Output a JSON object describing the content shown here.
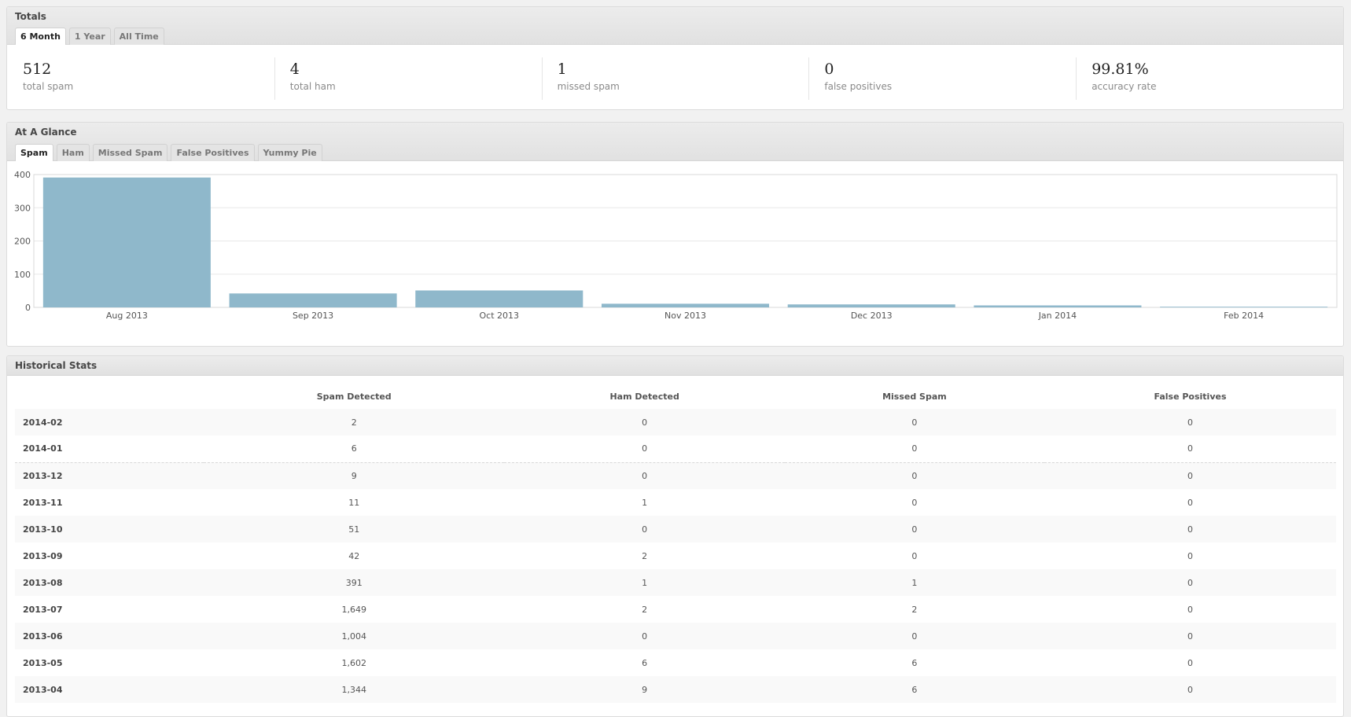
{
  "totals": {
    "title": "Totals",
    "tabs": [
      "6 Month",
      "1 Year",
      "All Time"
    ],
    "active_tab": 0,
    "stats": [
      {
        "value": "512",
        "label": "total spam"
      },
      {
        "value": "4",
        "label": "total ham"
      },
      {
        "value": "1",
        "label": "missed spam"
      },
      {
        "value": "0",
        "label": "false positives"
      },
      {
        "value": "99.81%",
        "label": "accuracy rate"
      }
    ]
  },
  "glance": {
    "title": "At A Glance",
    "tabs": [
      "Spam",
      "Ham",
      "Missed Spam",
      "False Positives",
      "Yummy Pie"
    ],
    "active_tab": 0
  },
  "chart_data": {
    "type": "bar",
    "categories": [
      "Aug 2013",
      "Sep 2013",
      "Oct 2013",
      "Nov 2013",
      "Dec 2013",
      "Jan 2014",
      "Feb 2014"
    ],
    "values": [
      391,
      42,
      51,
      11,
      9,
      6,
      2
    ],
    "ylim": [
      0,
      400
    ],
    "yticks": [
      0,
      100,
      200,
      300,
      400
    ],
    "grid": true,
    "bar_color": "#8fb8cb"
  },
  "history": {
    "title": "Historical Stats",
    "columns": [
      "",
      "Spam Detected",
      "Ham Detected",
      "Missed Spam",
      "False Positives"
    ],
    "rows": [
      [
        "2014-02",
        "2",
        "0",
        "0",
        "0"
      ],
      [
        "2014-01",
        "6",
        "0",
        "0",
        "0"
      ],
      [
        "2013-12",
        "9",
        "0",
        "0",
        "0"
      ],
      [
        "2013-11",
        "11",
        "1",
        "0",
        "0"
      ],
      [
        "2013-10",
        "51",
        "0",
        "0",
        "0"
      ],
      [
        "2013-09",
        "42",
        "2",
        "0",
        "0"
      ],
      [
        "2013-08",
        "391",
        "1",
        "1",
        "0"
      ],
      [
        "2013-07",
        "1,649",
        "2",
        "2",
        "0"
      ],
      [
        "2013-06",
        "1,004",
        "0",
        "0",
        "0"
      ],
      [
        "2013-05",
        "1,602",
        "6",
        "6",
        "0"
      ],
      [
        "2013-04",
        "1,344",
        "9",
        "6",
        "0"
      ]
    ]
  }
}
